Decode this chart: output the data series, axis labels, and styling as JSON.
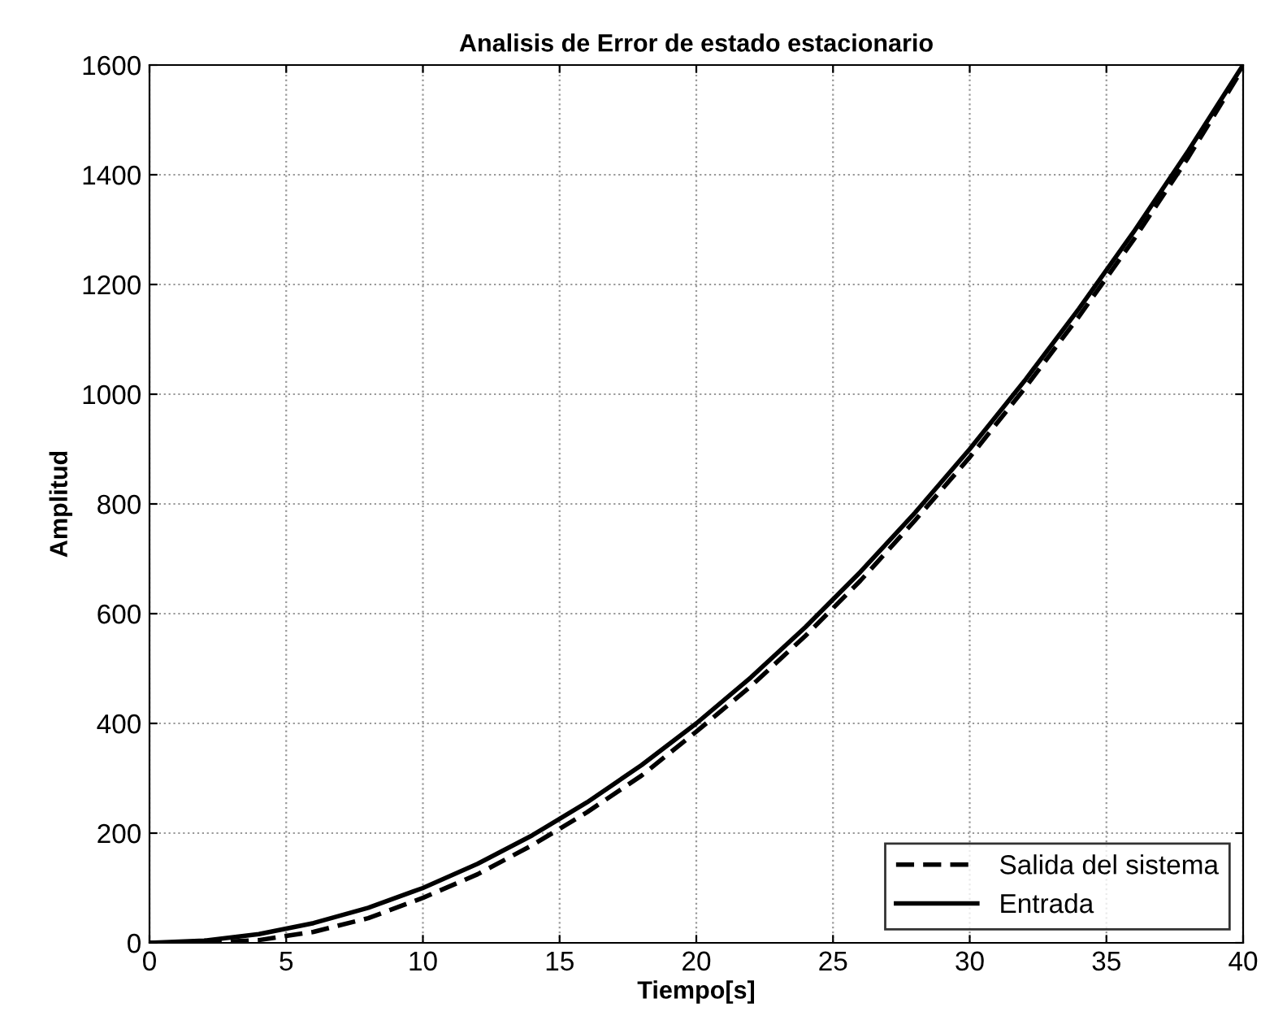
{
  "chart_data": {
    "type": "line",
    "title": "Analisis de Error de estado estacionario",
    "xlabel": "Tiempo[s]",
    "ylabel": "Amplitud",
    "x": [
      0,
      2,
      4,
      6,
      8,
      10,
      12,
      14,
      16,
      18,
      20,
      22,
      24,
      26,
      28,
      30,
      32,
      34,
      36,
      38,
      40
    ],
    "series": [
      {
        "name": "Salida del sistema",
        "color": "#000000",
        "line_style": "dashed",
        "values": [
          0,
          0,
          5,
          20,
          45,
          82,
          125,
          178,
          238,
          305,
          385,
          468,
          560,
          660,
          770,
          885,
          1010,
          1142,
          1282,
          1432,
          1595
        ]
      },
      {
        "name": "Entrada",
        "color": "#000000",
        "line_style": "solid",
        "values": [
          0,
          4,
          16,
          36,
          64,
          100,
          144,
          196,
          256,
          324,
          400,
          484,
          576,
          676,
          784,
          900,
          1024,
          1156,
          1296,
          1444,
          1600
        ]
      }
    ],
    "xlim": [
      0,
      40
    ],
    "xticks": [
      0,
      5,
      10,
      15,
      20,
      25,
      30,
      35,
      40
    ],
    "ylim": [
      0,
      1600
    ],
    "yticks": [
      0,
      200,
      400,
      600,
      800,
      1000,
      1200,
      1400,
      1600
    ],
    "grid": true,
    "legend": "bottom right",
    "marker": "none"
  }
}
